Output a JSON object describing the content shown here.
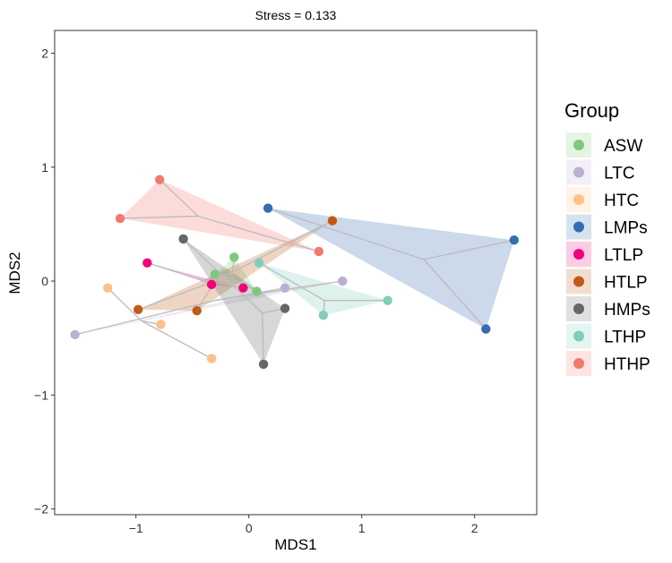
{
  "chart_data": {
    "type": "scatter",
    "title": "Stress = 0.133",
    "xlabel": "MDS1",
    "ylabel": "MDS2",
    "xlim": [
      -1.72,
      2.55
    ],
    "ylim": [
      -2.05,
      2.2
    ],
    "xticks": [
      -1,
      0,
      1,
      2
    ],
    "yticks": [
      -2,
      -1,
      0,
      1,
      2
    ],
    "xtick_labels": [
      "−1",
      "0",
      "1",
      "2"
    ],
    "ytick_labels": [
      "−2",
      "−1",
      "0",
      "1",
      "2"
    ],
    "grid": false,
    "legend_title": "Group",
    "legend_position": "right",
    "series": [
      {
        "name": "ASW",
        "color": "#7fc97f",
        "centroid": [
          -0.15,
          0.02
        ],
        "points": [
          [
            -0.13,
            0.21
          ],
          [
            -0.3,
            0.06
          ],
          [
            0.07,
            -0.09
          ]
        ]
      },
      {
        "name": "LTC",
        "color": "#beaed4",
        "centroid": [
          -0.3,
          -0.17
        ],
        "points": [
          [
            -1.54,
            -0.47
          ],
          [
            0.32,
            -0.06
          ],
          [
            0.83,
            0.0
          ]
        ]
      },
      {
        "name": "HTC",
        "color": "#fdc086",
        "centroid": [
          -0.95,
          -0.35
        ],
        "points": [
          [
            -1.25,
            -0.06
          ],
          [
            -0.78,
            -0.38
          ],
          [
            -0.33,
            -0.68
          ]
        ]
      },
      {
        "name": "LMPs",
        "color": "#386cb0",
        "centroid": [
          1.55,
          0.19
        ],
        "points": [
          [
            0.17,
            0.64
          ],
          [
            2.35,
            0.36
          ],
          [
            2.1,
            -0.42
          ]
        ]
      },
      {
        "name": "LTLP",
        "color": "#f0027f",
        "centroid": [
          -0.45,
          0.02
        ],
        "points": [
          [
            -0.9,
            0.16
          ],
          [
            -0.33,
            -0.03
          ],
          [
            -0.05,
            -0.06
          ]
        ]
      },
      {
        "name": "HTLP",
        "color": "#bf5b17",
        "centroid": [
          -0.3,
          0.0
        ],
        "points": [
          [
            -0.98,
            -0.25
          ],
          [
            -0.46,
            -0.26
          ],
          [
            0.74,
            0.53
          ]
        ]
      },
      {
        "name": "HMPs",
        "color": "#666666",
        "centroid": [
          0.12,
          -0.28
        ],
        "points": [
          [
            -0.58,
            0.37
          ],
          [
            0.32,
            -0.24
          ],
          [
            0.13,
            -0.73
          ]
        ]
      },
      {
        "name": "LTHP",
        "color": "#7fcdbb",
        "centroid": [
          0.67,
          -0.17
        ],
        "points": [
          [
            0.09,
            0.16
          ],
          [
            0.66,
            -0.3
          ],
          [
            1.23,
            -0.17
          ]
        ]
      },
      {
        "name": "HTHP",
        "color": "#f4786e",
        "centroid": [
          -0.45,
          0.57
        ],
        "points": [
          [
            -0.79,
            0.89
          ],
          [
            -1.14,
            0.55
          ],
          [
            0.62,
            0.26
          ]
        ]
      }
    ]
  }
}
